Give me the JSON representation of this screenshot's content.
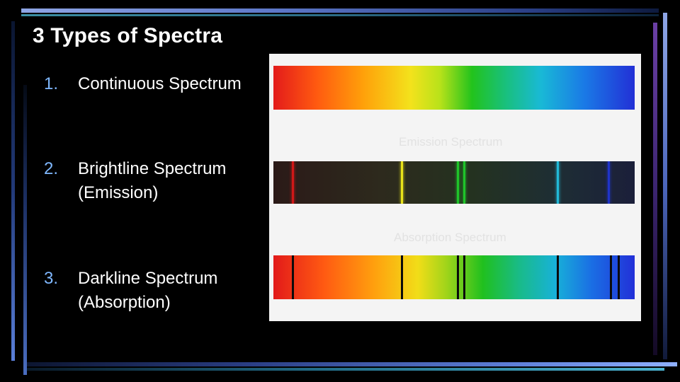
{
  "slide": {
    "title": "3 Types of Spectra",
    "items": [
      {
        "number": "1.",
        "line1": "Continuous Spectrum",
        "line2": ""
      },
      {
        "number": "2.",
        "line1": "Brightline Spectrum",
        "line2": "(Emission)"
      },
      {
        "number": "3.",
        "line1": "Darkline Spectrum",
        "line2": "(Absorption)"
      }
    ]
  },
  "spectra": {
    "emission_label": "Emission Spectrum",
    "absorption_label": "Absorption Spectrum",
    "emission_line_colors": [
      "#d01818",
      "#e8e21a",
      "#1fc42a",
      "#1fc42a",
      "#22b9d8",
      "#2033c8"
    ]
  }
}
